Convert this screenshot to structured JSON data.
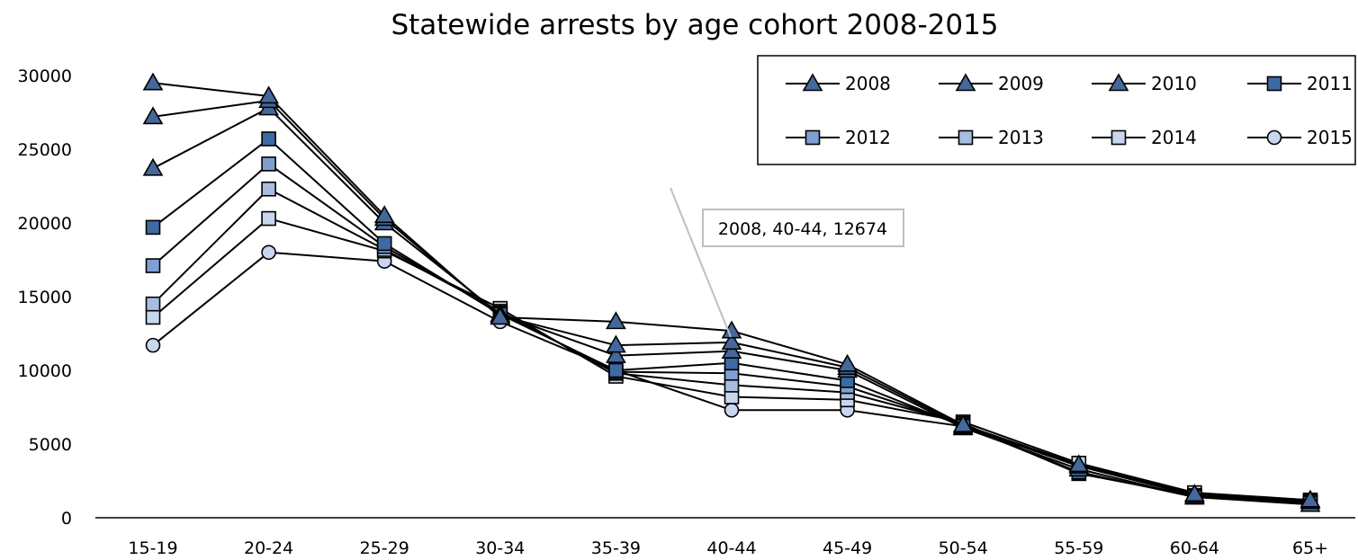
{
  "chart_data": {
    "type": "line",
    "title": "Statewide arrests by age cohort 2008-2015",
    "xlabel": "",
    "ylabel": "",
    "categories": [
      "15-19",
      "20-24",
      "25-29",
      "30-34",
      "35-39",
      "40-44",
      "45-49",
      "50-54",
      "55-59",
      "60-64",
      "65+"
    ],
    "ylim": [
      0,
      30000
    ],
    "yticks": [
      0,
      5000,
      10000,
      15000,
      20000,
      25000,
      30000
    ],
    "grid": false,
    "legend_position": "top-right",
    "series": [
      {
        "name": "2008",
        "marker": "triangle",
        "color": "#44689a",
        "values": [
          29500,
          28600,
          20500,
          13600,
          13300,
          12674,
          10400,
          6300,
          3600,
          1600,
          1200
        ]
      },
      {
        "name": "2009",
        "marker": "triangle",
        "color": "#44689a",
        "values": [
          27200,
          28300,
          20300,
          13700,
          11700,
          11900,
          10200,
          6200,
          3500,
          1500,
          1100
        ]
      },
      {
        "name": "2010",
        "marker": "triangle",
        "color": "#44689a",
        "values": [
          23700,
          27800,
          20000,
          13800,
          11000,
          11300,
          10000,
          6100,
          3300,
          1400,
          900
        ]
      },
      {
        "name": "2011",
        "marker": "square",
        "color": "#3e6aa4",
        "values": [
          19700,
          25700,
          18600,
          13800,
          10000,
          10500,
          9300,
          6200,
          3100,
          1400,
          1000
        ]
      },
      {
        "name": "2012",
        "marker": "square",
        "color": "#7f9fd0",
        "values": [
          17100,
          24000,
          18400,
          13900,
          9900,
          9800,
          8900,
          6300,
          3000,
          1500,
          1000
        ]
      },
      {
        "name": "2013",
        "marker": "square",
        "color": "#a9bde2",
        "values": [
          14500,
          22300,
          18200,
          14000,
          9800,
          9000,
          8500,
          6400,
          3000,
          1500,
          1100
        ]
      },
      {
        "name": "2014",
        "marker": "square",
        "color": "#c8d6ef",
        "values": [
          13600,
          20300,
          18100,
          14200,
          9600,
          8200,
          8000,
          6500,
          3700,
          1700,
          1200
        ]
      },
      {
        "name": "2015",
        "marker": "circle",
        "color": "#c8d6ef",
        "values": [
          11700,
          18000,
          17400,
          13300,
          10000,
          7300,
          7300,
          6200,
          3500,
          1600,
          1200
        ]
      }
    ],
    "tooltip": {
      "text": "2008, 40-44, 12674"
    }
  }
}
